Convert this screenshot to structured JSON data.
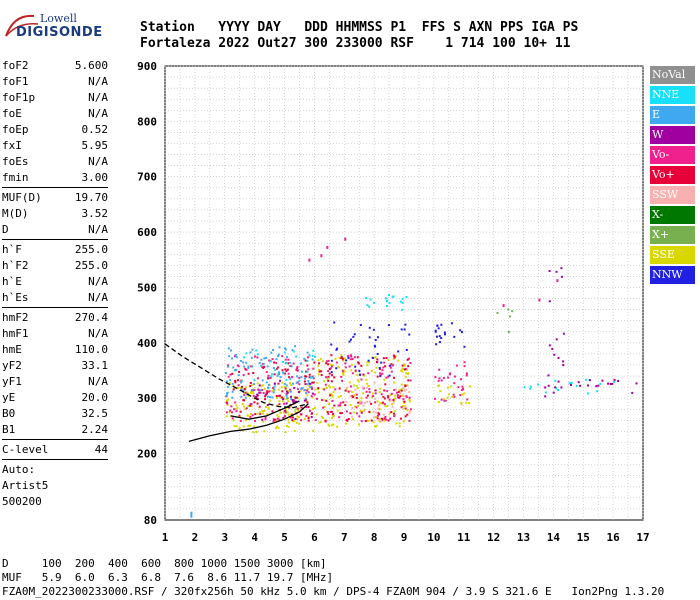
{
  "logo": {
    "line1": "Lowell",
    "line2": "DIGISONDE"
  },
  "header": {
    "line1": "Station   YYYY DAY   DDD HHMMSS P1  FFS S AXN PPS IGA PS",
    "line2": "Fortaleza 2022 Out27 300 233000 RSF    1 714 100 10+ 11"
  },
  "params": [
    [
      {
        "k": "foF2",
        "v": "5.600"
      },
      {
        "k": "foF1",
        "v": "N/A"
      },
      {
        "k": "foF1p",
        "v": "N/A"
      },
      {
        "k": "foE",
        "v": "N/A"
      },
      {
        "k": "foEp",
        "v": "0.52"
      },
      {
        "k": "fxI",
        "v": "5.95"
      },
      {
        "k": "foEs",
        "v": "N/A"
      },
      {
        "k": "fmin",
        "v": "3.00"
      }
    ],
    [
      {
        "k": "MUF(D)",
        "v": "19.70"
      },
      {
        "k": "M(D)",
        "v": "3.52"
      },
      {
        "k": "D",
        "v": "N/A"
      }
    ],
    [
      {
        "k": "h`F",
        "v": "255.0"
      },
      {
        "k": "h`F2",
        "v": "255.0"
      },
      {
        "k": "h`E",
        "v": "N/A"
      },
      {
        "k": "h`Es",
        "v": "N/A"
      }
    ],
    [
      {
        "k": "hmF2",
        "v": "270.4"
      },
      {
        "k": "hmF1",
        "v": "N/A"
      },
      {
        "k": "hmE",
        "v": "110.0"
      },
      {
        "k": "yF2",
        "v": "33.1"
      },
      {
        "k": "yF1",
        "v": "N/A"
      },
      {
        "k": "yE",
        "v": "20.0"
      },
      {
        "k": "B0",
        "v": "32.5"
      },
      {
        "k": "B1",
        "v": "2.24"
      }
    ],
    [
      {
        "k": "C-level",
        "v": "44"
      }
    ]
  ],
  "auto": {
    "l1": "Auto:",
    "l2": "Artist5",
    "l3": "500200"
  },
  "footer": {
    "line1": "D     100  200  400  600  800 1000 1500 3000 [km]",
    "line2": "MUF   5.9  6.0  6.3  6.8  7.6  8.6 11.7 19.7 [MHz]",
    "line3": "FZA0M_2022300233000.RSF / 320fx256h 50 kHz 5.0 km / DPS-4 FZA0M 904 / 3.9 S 321.6 E   Ion2Png 1.3.20"
  },
  "legend": [
    {
      "label": "NoVal",
      "color": "#909090"
    },
    {
      "label": "NNE",
      "color": "#18e0f8"
    },
    {
      "label": "E",
      "color": "#40a8f0"
    },
    {
      "label": "W",
      "color": "#a000a0"
    },
    {
      "label": "Vo-",
      "color": "#f0208c"
    },
    {
      "label": "Vo+",
      "color": "#e80038"
    },
    {
      "label": "SSW",
      "color": "#f8b0b0"
    },
    {
      "label": "X-",
      "color": "#007800"
    },
    {
      "label": "X+",
      "color": "#78b050"
    },
    {
      "label": "SSE",
      "color": "#d8d800"
    },
    {
      "label": "NNW",
      "color": "#2020e0"
    }
  ],
  "chart_data": {
    "type": "scatter",
    "title": "",
    "xlabel": "",
    "ylabel": "",
    "xlim": [
      1,
      17
    ],
    "ylim": [
      80,
      900
    ],
    "xticks": [
      1,
      2,
      3,
      4,
      5,
      6,
      7,
      8,
      9,
      10,
      11,
      12,
      13,
      14,
      15,
      16,
      17
    ],
    "yticks": [
      80,
      200,
      300,
      400,
      500,
      600,
      700,
      800,
      900
    ],
    "grid": true,
    "legend_position": "right",
    "traces": [
      {
        "name": "O-trace",
        "points": [
          [
            1.8,
            222
          ],
          [
            2.5,
            232
          ],
          [
            3.2,
            240
          ],
          [
            3.8,
            244
          ],
          [
            4.4,
            251
          ],
          [
            5.0,
            262
          ],
          [
            5.5,
            275
          ],
          [
            5.8,
            290
          ]
        ]
      },
      {
        "name": "profile-upper",
        "points": [
          [
            1.0,
            398
          ],
          [
            1.6,
            375
          ],
          [
            2.2,
            355
          ],
          [
            2.8,
            335
          ],
          [
            3.4,
            318
          ],
          [
            3.9,
            303
          ],
          [
            4.3,
            292
          ],
          [
            4.8,
            285
          ],
          [
            5.3,
            283
          ],
          [
            5.8,
            290
          ]
        ]
      },
      {
        "name": "X-trace",
        "points": [
          [
            3.2,
            268
          ],
          [
            3.8,
            262
          ],
          [
            4.4,
            268
          ],
          [
            5.0,
            282
          ],
          [
            5.5,
            295
          ]
        ]
      }
    ],
    "clusters": [
      {
        "x": [
          3.0,
          6.0
        ],
        "y": [
          240,
          330
        ],
        "series": "SSE",
        "density": 0.9
      },
      {
        "x": [
          3.0,
          6.0
        ],
        "y": [
          260,
          380
        ],
        "series": "Vo-",
        "density": 0.5
      },
      {
        "x": [
          3.0,
          6.0
        ],
        "y": [
          260,
          370
        ],
        "series": "Vo+",
        "density": 0.4
      },
      {
        "x": [
          3.0,
          6.0
        ],
        "y": [
          300,
          400
        ],
        "series": "E",
        "density": 0.6
      },
      {
        "x": [
          3.5,
          6.0
        ],
        "y": [
          330,
          390
        ],
        "series": "NNE",
        "density": 0.3
      },
      {
        "x": [
          4.0,
          6.0
        ],
        "y": [
          260,
          340
        ],
        "series": "W",
        "density": 0.3
      },
      {
        "x": [
          6.0,
          9.2
        ],
        "y": [
          250,
          380
        ],
        "series": "SSE",
        "density": 0.7
      },
      {
        "x": [
          6.0,
          9.2
        ],
        "y": [
          260,
          390
        ],
        "series": "Vo-",
        "density": 0.4
      },
      {
        "x": [
          6.0,
          9.2
        ],
        "y": [
          260,
          380
        ],
        "series": "Vo+",
        "density": 0.4
      },
      {
        "x": [
          6.5,
          9.2
        ],
        "y": [
          340,
          440
        ],
        "series": "NNW",
        "density": 0.25
      },
      {
        "x": [
          7.5,
          9.2
        ],
        "y": [
          460,
          490
        ],
        "series": "NNE",
        "density": 0.6
      },
      {
        "x": [
          7.0,
          9.2
        ],
        "y": [
          260,
          330
        ],
        "series": "SSW",
        "density": 0.4
      },
      {
        "x": [
          10.0,
          11.0
        ],
        "y": [
          390,
          440
        ],
        "series": "NNW",
        "density": 0.6
      },
      {
        "x": [
          10.0,
          11.2
        ],
        "y": [
          290,
          370
        ],
        "series": "Vo-",
        "density": 0.5
      },
      {
        "x": [
          10.0,
          11.2
        ],
        "y": [
          290,
          330
        ],
        "series": "SSE",
        "density": 0.6
      },
      {
        "x": [
          12.0,
          12.6
        ],
        "y": [
          420,
          470
        ],
        "series": "X+",
        "density": 0.3
      },
      {
        "x": [
          13.0,
          17.0
        ],
        "y": [
          310,
          335
        ],
        "series": "NNE",
        "density": 0.3
      },
      {
        "x": [
          13.5,
          16.8
        ],
        "y": [
          305,
          335
        ],
        "series": "W",
        "density": 0.35
      },
      {
        "x": [
          13.8,
          14.4
        ],
        "y": [
          330,
          540
        ],
        "series": "W",
        "density": 0.2
      }
    ]
  }
}
